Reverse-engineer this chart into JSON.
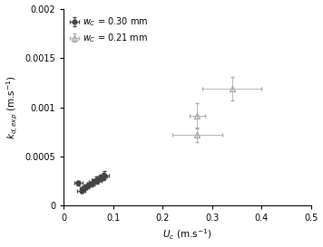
{
  "title": "",
  "xlabel": "$U_c$ (m.s$^{-1}$)",
  "ylabel": "$k_{d,exp}$ (m.s$^{-1}$)",
  "xlim": [
    0,
    0.5
  ],
  "ylim": [
    0,
    0.002
  ],
  "xticks": [
    0,
    0.1,
    0.2,
    0.3,
    0.4,
    0.5
  ],
  "yticks": [
    0,
    0.0005,
    0.001,
    0.0015,
    0.002
  ],
  "ytick_labels": [
    "0",
    "0.0005",
    "0.001",
    "0.0015",
    "0.002"
  ],
  "xtick_labels": [
    "0",
    "0.1",
    "0.2",
    "0.3",
    "0.4",
    "0.5"
  ],
  "series_filled": {
    "label": "$w_C$ = 0.30 mm",
    "x": [
      0.03,
      0.036,
      0.04,
      0.044,
      0.05,
      0.055,
      0.06,
      0.065,
      0.068,
      0.075,
      0.08,
      0.083
    ],
    "y": [
      0.00023,
      0.000155,
      0.000175,
      0.00019,
      0.00021,
      0.00022,
      0.00024,
      0.000265,
      0.00025,
      0.000285,
      0.0003,
      0.00031
    ],
    "xerr": [
      0.008,
      0.008,
      0.008,
      0.008,
      0.008,
      0.008,
      0.008,
      0.008,
      0.008,
      0.008,
      0.008,
      0.008
    ],
    "yerr": [
      2.5e-05,
      2.5e-05,
      2.5e-05,
      2.5e-05,
      2.5e-05,
      2.5e-05,
      3e-05,
      3e-05,
      3e-05,
      3.5e-05,
      3.5e-05,
      4e-05
    ],
    "marker": "o",
    "color": "#444444",
    "ecolor": "#444444"
  },
  "series_open": {
    "label": "$w_C$ = 0.21 mm",
    "x": [
      0.27,
      0.27,
      0.34
    ],
    "y": [
      0.00072,
      0.00091,
      0.00119
    ],
    "xerr": [
      0.05,
      0.015,
      0.06
    ],
    "yerr": [
      7e-05,
      0.00013,
      0.00012
    ],
    "marker": "^",
    "color": "#aaaaaa",
    "ecolor": "#aaaaaa"
  },
  "legend_loc": "upper left",
  "background_color": "#ffffff"
}
